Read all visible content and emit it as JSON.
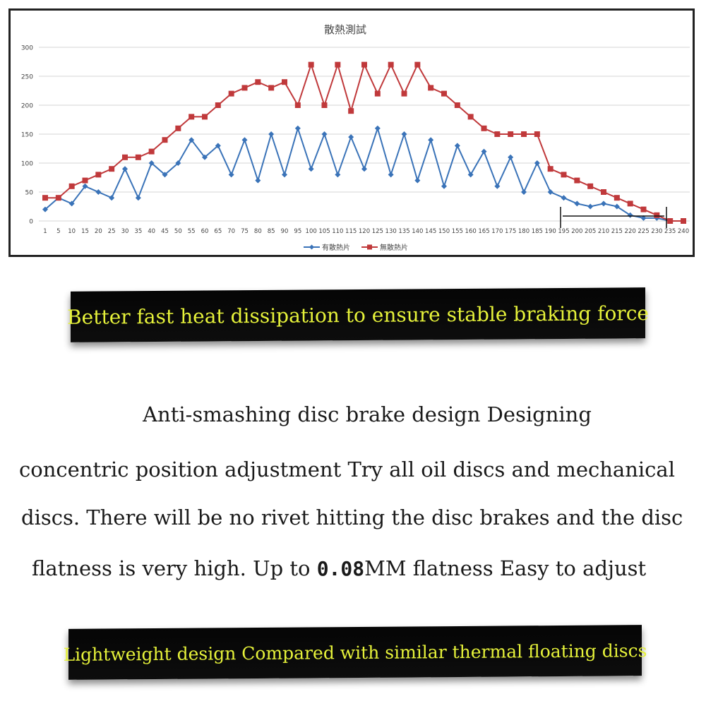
{
  "chart_data": {
    "type": "line",
    "title": "散熱測試",
    "ylim": [
      0,
      300
    ],
    "yticks": [
      0,
      50,
      100,
      150,
      200,
      250,
      300
    ],
    "categories": [
      "1",
      "5",
      "10",
      "15",
      "20",
      "25",
      "30",
      "35",
      "40",
      "45",
      "50",
      "55",
      "60",
      "65",
      "70",
      "75",
      "80",
      "85",
      "90",
      "95",
      "100",
      "105",
      "110",
      "115",
      "120",
      "125",
      "130",
      "135",
      "140",
      "145",
      "150",
      "155",
      "160",
      "165",
      "170",
      "175",
      "180",
      "185",
      "190",
      "195",
      "200",
      "205",
      "210",
      "215",
      "220",
      "225",
      "230",
      "235",
      "240"
    ],
    "series": [
      {
        "name": "有散熱片",
        "color": "#3a73b8",
        "marker": "diamond",
        "values": [
          20,
          40,
          30,
          60,
          50,
          40,
          90,
          40,
          100,
          80,
          100,
          140,
          110,
          130,
          80,
          140,
          70,
          150,
          80,
          160,
          90,
          150,
          80,
          145,
          90,
          160,
          80,
          150,
          70,
          140,
          60,
          130,
          80,
          120,
          60,
          110,
          50,
          100,
          50,
          40,
          30,
          25,
          30,
          25,
          10,
          5,
          5,
          0,
          null
        ]
      },
      {
        "name": "無散熱片",
        "color": "#c0393b",
        "marker": "square",
        "values": [
          40,
          40,
          60,
          70,
          80,
          90,
          110,
          110,
          120,
          140,
          160,
          180,
          180,
          200,
          220,
          230,
          240,
          230,
          240,
          200,
          270,
          200,
          270,
          190,
          270,
          220,
          270,
          220,
          270,
          230,
          220,
          200,
          180,
          160,
          150,
          150,
          150,
          150,
          90,
          80,
          70,
          60,
          50,
          40,
          30,
          20,
          10,
          0,
          0
        ]
      }
    ],
    "grid": true,
    "legend": "bottom-center"
  },
  "banners": {
    "top": "Better fast heat dissipation to ensure stable braking force",
    "bottom": "Lightweight design Compared with similar thermal floating discs"
  },
  "body": {
    "line1": "Anti-smashing disc brake design Designing",
    "line2": "concentric position adjustment Try all oil discs and mechanical",
    "line3": "discs. There will be no rivet hitting the disc brakes and the disc",
    "line4_a": "flatness is very high. Up to ",
    "line4_num": "0.08",
    "line4_b": "MM flatness Easy to adjust"
  }
}
